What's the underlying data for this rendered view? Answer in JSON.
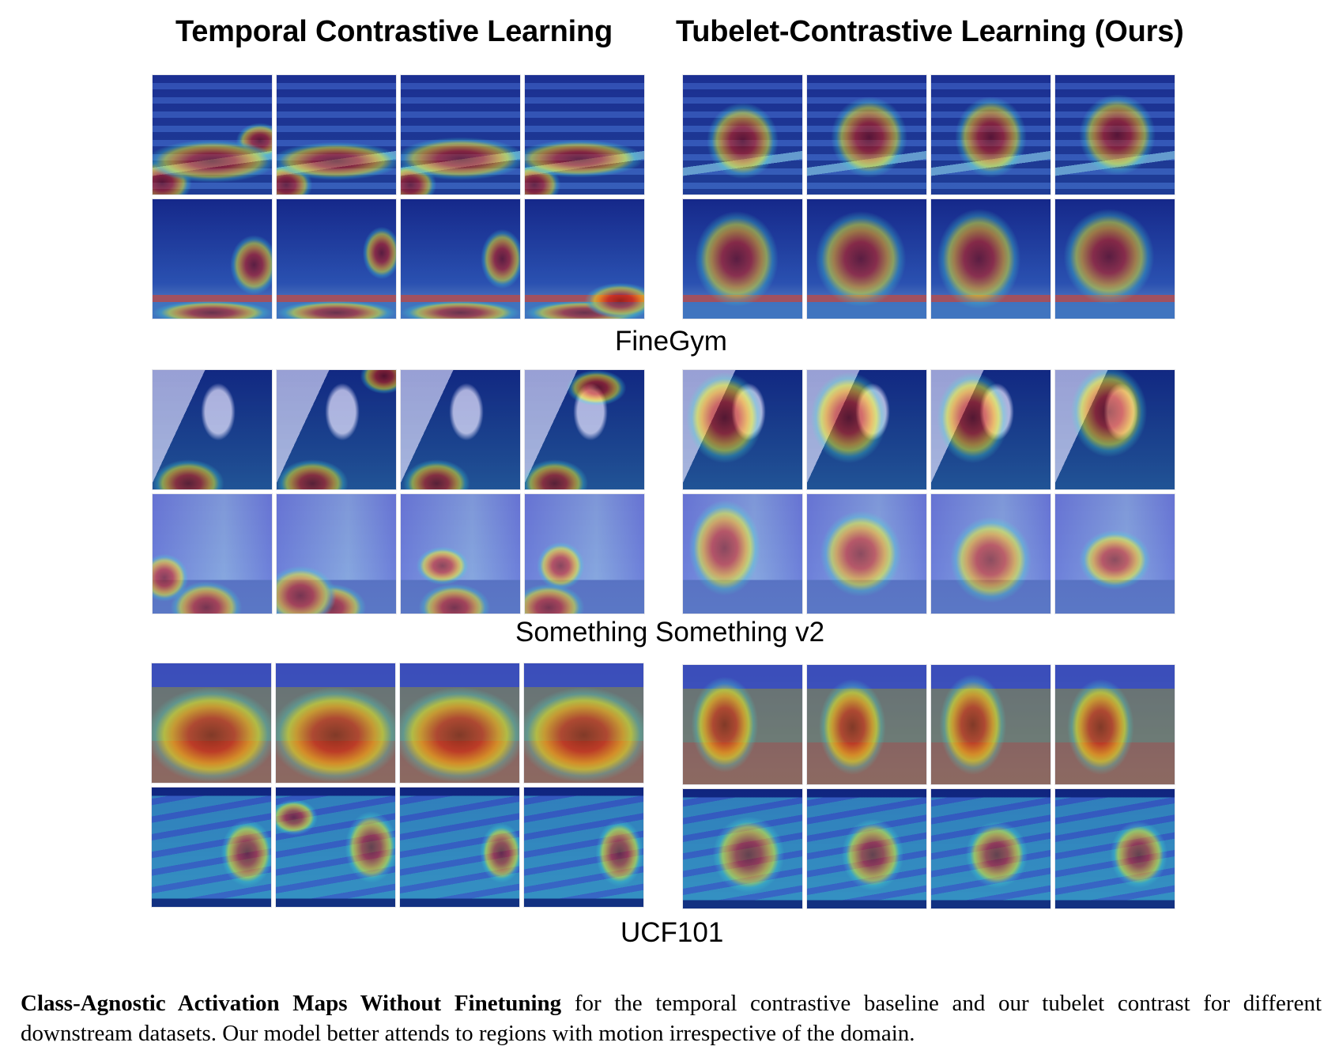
{
  "figure": {
    "column_titles": {
      "left": "Temporal Contrastive Learning",
      "right": "Tubelet-Contrastive Learning (Ours)"
    },
    "datasets": [
      {
        "name": "FineGym",
        "rows": [
          {
            "scene": "balance-beam",
            "scene_colors": [
              "#1b2a86",
              "#3c59b8",
              "#7fb6d8"
            ],
            "left": [
              {
                "hot": [
                  [
                    50,
                    72,
                    55,
                    18
                  ],
                  [
                    8,
                    90,
                    25,
                    20
                  ],
                  [
                    90,
                    55,
                    20,
                    15
                  ]
                ]
              },
              {
                "hot": [
                  [
                    50,
                    72,
                    55,
                    16
                  ],
                  [
                    8,
                    92,
                    22,
                    18
                  ]
                ]
              },
              {
                "hot": [
                  [
                    50,
                    70,
                    55,
                    18
                  ],
                  [
                    8,
                    92,
                    22,
                    18
                  ]
                ]
              },
              {
                "hot": [
                  [
                    45,
                    70,
                    55,
                    16
                  ],
                  [
                    8,
                    92,
                    22,
                    18
                  ]
                ]
              }
            ],
            "right": [
              {
                "hot": [
                  [
                    50,
                    55,
                    30,
                    32
                  ]
                ]
              },
              {
                "hot": [
                  [
                    52,
                    52,
                    32,
                    34
                  ]
                ]
              },
              {
                "hot": [
                  [
                    50,
                    52,
                    30,
                    34
                  ]
                ]
              },
              {
                "hot": [
                  [
                    52,
                    50,
                    32,
                    34
                  ]
                ]
              }
            ]
          },
          {
            "scene": "uneven-bars",
            "scene_colors": [
              "#121f7a",
              "#2d4cae",
              "#8a9fc9"
            ],
            "left": [
              {
                "hot": [
                  [
                    85,
                    55,
                    20,
                    25
                  ],
                  [
                    50,
                    95,
                    50,
                    10
                  ]
                ]
              },
              {
                "hot": [
                  [
                    88,
                    45,
                    16,
                    22
                  ],
                  [
                    50,
                    95,
                    50,
                    10
                  ]
                ]
              },
              {
                "hot": [
                  [
                    85,
                    50,
                    18,
                    25
                  ],
                  [
                    50,
                    95,
                    50,
                    10
                  ]
                ]
              },
              {
                "hot": [
                  [
                    80,
                    85,
                    30,
                    15
                  ],
                  [
                    50,
                    95,
                    50,
                    10
                  ]
                ]
              }
            ],
            "right": [
              {
                "hot": [
                  [
                    45,
                    50,
                    35,
                    40
                  ]
                ]
              },
              {
                "hot": [
                  [
                    45,
                    50,
                    38,
                    40
                  ]
                ]
              },
              {
                "hot": [
                  [
                    40,
                    50,
                    35,
                    42
                  ]
                ]
              },
              {
                "hot": [
                  [
                    45,
                    48,
                    38,
                    40
                  ]
                ]
              }
            ]
          }
        ]
      },
      {
        "name": "Something Something v2",
        "rows": [
          {
            "scene": "hand-paper",
            "scene_colors": [
              "#0c1f6e",
              "#1f4a86",
              "#d7d3ea"
            ],
            "left": [
              {
                "hot": [
                  [
                    30,
                    95,
                    30,
                    20
                  ]
                ]
              },
              {
                "hot": [
                  [
                    30,
                    95,
                    30,
                    20
                  ],
                  [
                    90,
                    5,
                    20,
                    15
                  ]
                ]
              },
              {
                "hot": [
                  [
                    30,
                    95,
                    28,
                    20
                  ]
                ]
              },
              {
                "hot": [
                  [
                    25,
                    95,
                    28,
                    20
                  ],
                  [
                    60,
                    15,
                    25,
                    15
                  ]
                ]
              }
            ],
            "right": [
              {
                "hot": [
                  [
                    35,
                    40,
                    32,
                    38
                  ]
                ]
              },
              {
                "hot": [
                  [
                    35,
                    40,
                    32,
                    38
                  ]
                ]
              },
              {
                "hot": [
                  [
                    35,
                    40,
                    30,
                    38
                  ]
                ]
              },
              {
                "hot": [
                  [
                    45,
                    35,
                    32,
                    38
                  ]
                ]
              }
            ]
          },
          {
            "scene": "bag-floor",
            "scene_colors": [
              "#8c8fe8",
              "#b0c6ef",
              "#5f6fbd"
            ],
            "left": [
              {
                "hot": [
                  [
                    45,
                    95,
                    30,
                    22
                  ],
                  [
                    10,
                    70,
                    20,
                    20
                  ]
                ]
              },
              {
                "hot": [
                  [
                    20,
                    85,
                    30,
                    25
                  ],
                  [
                    45,
                    95,
                    30,
                    20
                  ]
                ]
              },
              {
                "hot": [
                  [
                    45,
                    95,
                    30,
                    20
                  ],
                  [
                    35,
                    60,
                    22,
                    16
                  ]
                ]
              },
              {
                "hot": [
                  [
                    20,
                    95,
                    30,
                    20
                  ],
                  [
                    30,
                    60,
                    20,
                    20
                  ]
                ]
              }
            ],
            "right": [
              {
                "hot": [
                  [
                    35,
                    45,
                    30,
                    40
                  ]
                ]
              },
              {
                "hot": [
                  [
                    45,
                    50,
                    34,
                    36
                  ]
                ]
              },
              {
                "hot": [
                  [
                    50,
                    55,
                    34,
                    36
                  ]
                ]
              },
              {
                "hot": [
                  [
                    50,
                    55,
                    30,
                    25
                  ]
                ]
              }
            ]
          }
        ]
      },
      {
        "name": "UCF101",
        "rows": [
          {
            "scene": "cricket-field",
            "scene_colors": [
              "#4a57c2",
              "#8d8a5a",
              "#b3683e"
            ],
            "left": [
              {
                "hot": [
                  [
                    50,
                    60,
                    55,
                    40
                  ]
                ]
              },
              {
                "hot": [
                  [
                    50,
                    60,
                    55,
                    40
                  ]
                ]
              },
              {
                "hot": [
                  [
                    50,
                    60,
                    55,
                    40
                  ]
                ]
              },
              {
                "hot": [
                  [
                    50,
                    60,
                    55,
                    40
                  ]
                ]
              }
            ],
            "right": [
              {
                "hot": [
                  [
                    35,
                    50,
                    28,
                    40
                  ]
                ]
              },
              {
                "hot": [
                  [
                    38,
                    52,
                    28,
                    40
                  ]
                ]
              },
              {
                "hot": [
                  [
                    35,
                    50,
                    28,
                    42
                  ]
                ]
              },
              {
                "hot": [
                  [
                    38,
                    52,
                    28,
                    40
                  ]
                ]
              }
            ]
          },
          {
            "scene": "running-track",
            "scene_colors": [
              "#0a1a6a",
              "#3aa0c4",
              "#3e66c8"
            ],
            "left": [
              {
                "hot": [
                  [
                    80,
                    55,
                    22,
                    28
                  ]
                ]
              },
              {
                "hot": [
                  [
                    80,
                    50,
                    22,
                    30
                  ],
                  [
                    15,
                    25,
                    20,
                    15
                  ]
                ]
              },
              {
                "hot": [
                  [
                    85,
                    55,
                    18,
                    25
                  ]
                ]
              },
              {
                "hot": [
                  [
                    80,
                    55,
                    20,
                    28
                  ]
                ]
              }
            ],
            "right": [
              {
                "hot": [
                  [
                    55,
                    55,
                    30,
                    32
                  ]
                ]
              },
              {
                "hot": [
                  [
                    55,
                    55,
                    26,
                    30
                  ]
                ]
              },
              {
                "hot": [
                  [
                    55,
                    55,
                    26,
                    28
                  ]
                ]
              },
              {
                "hot": [
                  [
                    70,
                    55,
                    24,
                    28
                  ]
                ]
              }
            ]
          }
        ]
      }
    ],
    "caption": {
      "bold": "Class-Agnostic Activation Maps Without Finetuning",
      "text": " for the temporal contrastive baseline and our tubelet contrast for different downstream datasets. Our model better attends to regions with motion irrespective of the domain."
    }
  }
}
